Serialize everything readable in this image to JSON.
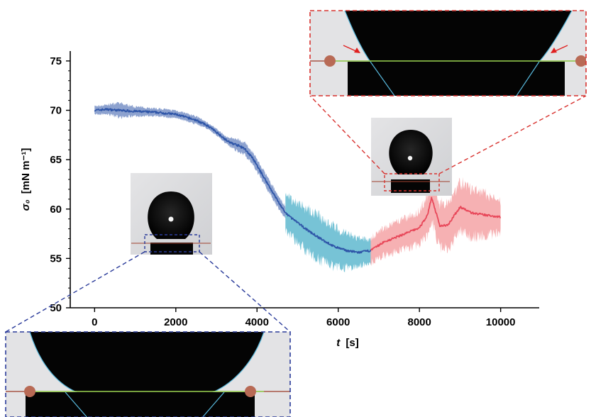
{
  "chart_data": {
    "type": "line",
    "xlabel": {
      "symbol": "t",
      "unit": "[s]"
    },
    "ylabel": {
      "symbol": "σ₀",
      "unit": "[mN m⁻¹]"
    },
    "xlim": [
      -600,
      10950
    ],
    "ylim": [
      50,
      76
    ],
    "xticks": [
      0,
      2000,
      4000,
      6000,
      8000,
      10000
    ],
    "yticks": [
      50,
      55,
      60,
      65,
      70,
      75
    ],
    "series": [
      {
        "segment": "initial",
        "color": "#2f56a8",
        "x": [
          0,
          300,
          600,
          1000,
          1500,
          2000,
          2500,
          2800,
          3000,
          3300,
          3500,
          3700,
          3900,
          4100,
          4300,
          4500,
          4700
        ],
        "y": [
          70.0,
          70.1,
          70.0,
          69.9,
          69.8,
          69.6,
          69.0,
          68.4,
          67.8,
          66.8,
          66.5,
          66.1,
          65.1,
          63.7,
          62.3,
          60.9,
          59.6
        ],
        "band": [
          0.5,
          0.6,
          0.9,
          0.6,
          0.5,
          0.5,
          0.5,
          0.4,
          0.4,
          0.5,
          0.8,
          0.8,
          0.8,
          0.8,
          0.8,
          0.8,
          0.8
        ]
      },
      {
        "segment": "decline",
        "color": "#2f56a8",
        "band_color": "#5fb9cf",
        "x": [
          4700,
          5000,
          5300,
          5600,
          5900,
          6200,
          6500,
          6800
        ],
        "y": [
          59.6,
          58.6,
          57.7,
          56.9,
          56.2,
          55.8,
          55.6,
          55.8
        ],
        "band": [
          2.2,
          2.6,
          2.8,
          2.8,
          2.6,
          2.2,
          1.8,
          1.5
        ]
      },
      {
        "segment": "rebound",
        "color": "#e8485a",
        "band_color": "#f4a3a6",
        "x": [
          6800,
          7100,
          7400,
          7700,
          8000,
          8200,
          8300,
          8500,
          8700,
          9000,
          9300,
          9600,
          10000
        ],
        "y": [
          55.8,
          56.6,
          57.1,
          57.6,
          58.1,
          59.4,
          61.2,
          58.3,
          58.4,
          60.2,
          59.6,
          59.4,
          59.2
        ],
        "band": [
          1.6,
          1.8,
          1.9,
          2.0,
          2.2,
          2.6,
          2.9,
          2.9,
          3.0,
          3.2,
          3.0,
          2.8,
          2.0
        ]
      }
    ],
    "insets": [
      {
        "name": "droplet-at-start",
        "x": 1800,
        "y": 59.5
      },
      {
        "name": "droplet-at-end",
        "x": 7500,
        "y": 63.5
      }
    ]
  }
}
